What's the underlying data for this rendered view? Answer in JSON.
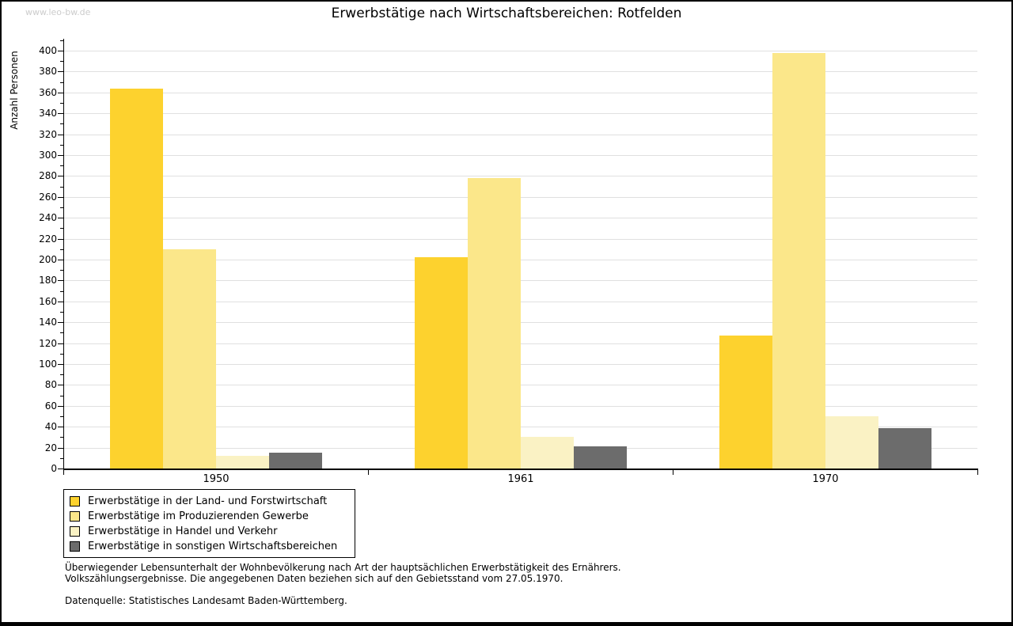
{
  "page": {
    "watermark": "www.leo-bw.de"
  },
  "chart_data": {
    "type": "bar",
    "title": "Erwerbstätige nach Wirtschaftsbereichen: Rotfelden",
    "ylabel": "Anzahl Personen",
    "xlabel": "",
    "categories": [
      "1950",
      "1961",
      "1970"
    ],
    "series": [
      {
        "name": "Erwerbstätige in der Land- und Forstwirtschaft",
        "color": "#fdd22e",
        "values": [
          364,
          202,
          127
        ]
      },
      {
        "name": "Erwerbstätige im Produzierenden Gewerbe",
        "color": "#fbe78a",
        "values": [
          210,
          278,
          398
        ]
      },
      {
        "name": "Erwerbstätige in Handel und Verkehr",
        "color": "#faf2c4",
        "values": [
          12,
          30,
          50
        ]
      },
      {
        "name": "Erwerbstätige in sonstigen Wirtschaftsbereichen",
        "color": "#6c6c6c",
        "values": [
          15,
          21,
          39
        ]
      }
    ],
    "ylim": [
      0,
      400
    ],
    "ytick_major": 20,
    "ytick_minor": 10,
    "grid": true,
    "legend_position": "bottom-left"
  },
  "footer": {
    "line1": "Überwiegender Lebensunterhalt der Wohnbevölkerung nach Art der hauptsächlichen Erwerbstätigkeit des Ernährers.",
    "line2": "Volkszählungsergebnisse. Die angegebenen Daten beziehen sich auf den Gebietsstand vom 27.05.1970.",
    "source": "Datenquelle: Statistisches Landesamt Baden-Württemberg."
  },
  "colors": {
    "grid": "#e0e0e0",
    "axis": "#000000",
    "watermark": "#cccccc",
    "text": "#000000"
  }
}
